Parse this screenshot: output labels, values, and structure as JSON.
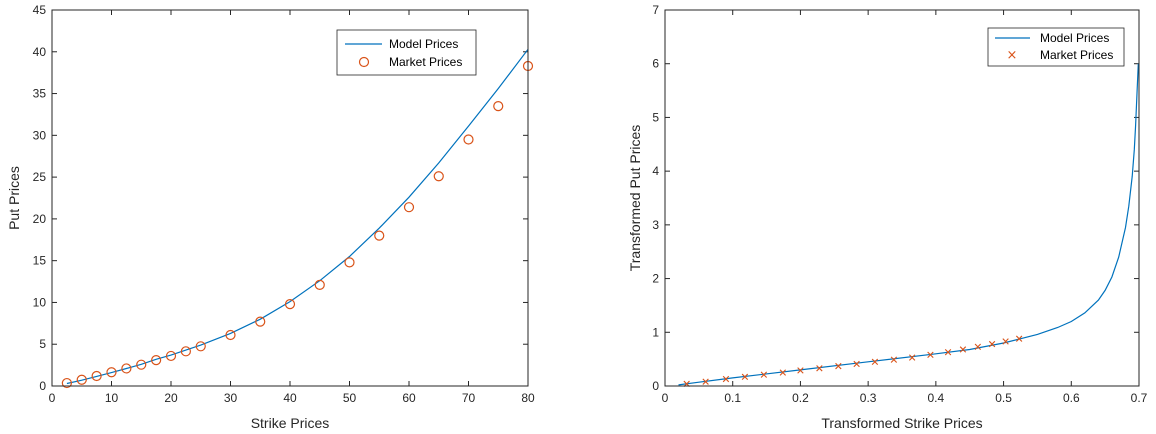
{
  "chart_data": [
    {
      "type": "line",
      "xlabel": "Strike Prices",
      "ylabel": "Put Prices",
      "xlim": [
        0,
        80
      ],
      "ylim": [
        0,
        45
      ],
      "xticks": [
        0,
        10,
        20,
        30,
        40,
        50,
        60,
        70,
        80
      ],
      "yticks": [
        0,
        5,
        10,
        15,
        20,
        25,
        30,
        35,
        40,
        45
      ],
      "grid": false,
      "legend_position": "top-right",
      "series": [
        {
          "name": "Model Prices",
          "style": "line",
          "color": "#0072BD",
          "x": [
            2.5,
            5,
            7.5,
            10,
            12.5,
            15,
            17.5,
            20,
            22.5,
            25,
            30,
            35,
            40,
            45,
            50,
            55,
            60,
            65,
            70,
            75,
            80
          ],
          "y": [
            0.3,
            0.7,
            1.15,
            1.6,
            2.1,
            2.6,
            3.2,
            3.7,
            4.3,
            4.9,
            6.3,
            8.0,
            10.1,
            12.6,
            15.5,
            18.9,
            22.6,
            26.7,
            31.1,
            35.6,
            40.3
          ]
        },
        {
          "name": "Market Prices",
          "style": "marker-o",
          "color": "#D95319",
          "x": [
            2.5,
            5,
            7.5,
            10,
            12.5,
            15,
            17.5,
            20,
            22.5,
            25,
            30,
            35,
            40,
            45,
            50,
            55,
            60,
            65,
            70,
            75,
            80
          ],
          "y": [
            0.35,
            0.75,
            1.2,
            1.65,
            2.1,
            2.55,
            3.1,
            3.6,
            4.15,
            4.75,
            6.1,
            7.7,
            9.8,
            12.1,
            14.8,
            18.0,
            21.4,
            25.1,
            29.5,
            33.5,
            38.3
          ]
        }
      ]
    },
    {
      "type": "line",
      "xlabel": "Transformed Strike Prices",
      "ylabel": "Transformed Put Prices",
      "xlim": [
        0,
        0.7
      ],
      "ylim": [
        0,
        7
      ],
      "xticks": [
        0,
        0.1,
        0.2,
        0.3,
        0.4,
        0.5,
        0.6,
        0.7
      ],
      "yticks": [
        0,
        1,
        2,
        3,
        4,
        5,
        6,
        7
      ],
      "grid": false,
      "legend_position": "top-right",
      "series": [
        {
          "name": "Model Prices",
          "style": "line",
          "color": "#0072BD",
          "x": [
            0.02,
            0.05,
            0.1,
            0.2,
            0.3,
            0.4,
            0.45,
            0.5,
            0.55,
            0.58,
            0.6,
            0.62,
            0.64,
            0.65,
            0.66,
            0.67,
            0.68,
            0.685,
            0.69,
            0.693,
            0.695,
            0.697,
            0.699
          ],
          "y": [
            0.02,
            0.07,
            0.15,
            0.3,
            0.45,
            0.6,
            0.68,
            0.8,
            0.96,
            1.09,
            1.2,
            1.36,
            1.6,
            1.78,
            2.03,
            2.4,
            2.95,
            3.35,
            3.9,
            4.4,
            4.85,
            5.45,
            6.0
          ]
        },
        {
          "name": "Market Prices",
          "style": "marker-x",
          "color": "#D95319",
          "x": [
            0.032,
            0.06,
            0.09,
            0.118,
            0.146,
            0.174,
            0.2,
            0.228,
            0.256,
            0.283,
            0.31,
            0.338,
            0.365,
            0.392,
            0.418,
            0.44,
            0.462,
            0.483,
            0.503,
            0.523
          ],
          "y": [
            0.04,
            0.08,
            0.13,
            0.17,
            0.21,
            0.25,
            0.29,
            0.33,
            0.37,
            0.41,
            0.45,
            0.49,
            0.53,
            0.58,
            0.63,
            0.68,
            0.73,
            0.78,
            0.83,
            0.88
          ]
        }
      ]
    }
  ]
}
